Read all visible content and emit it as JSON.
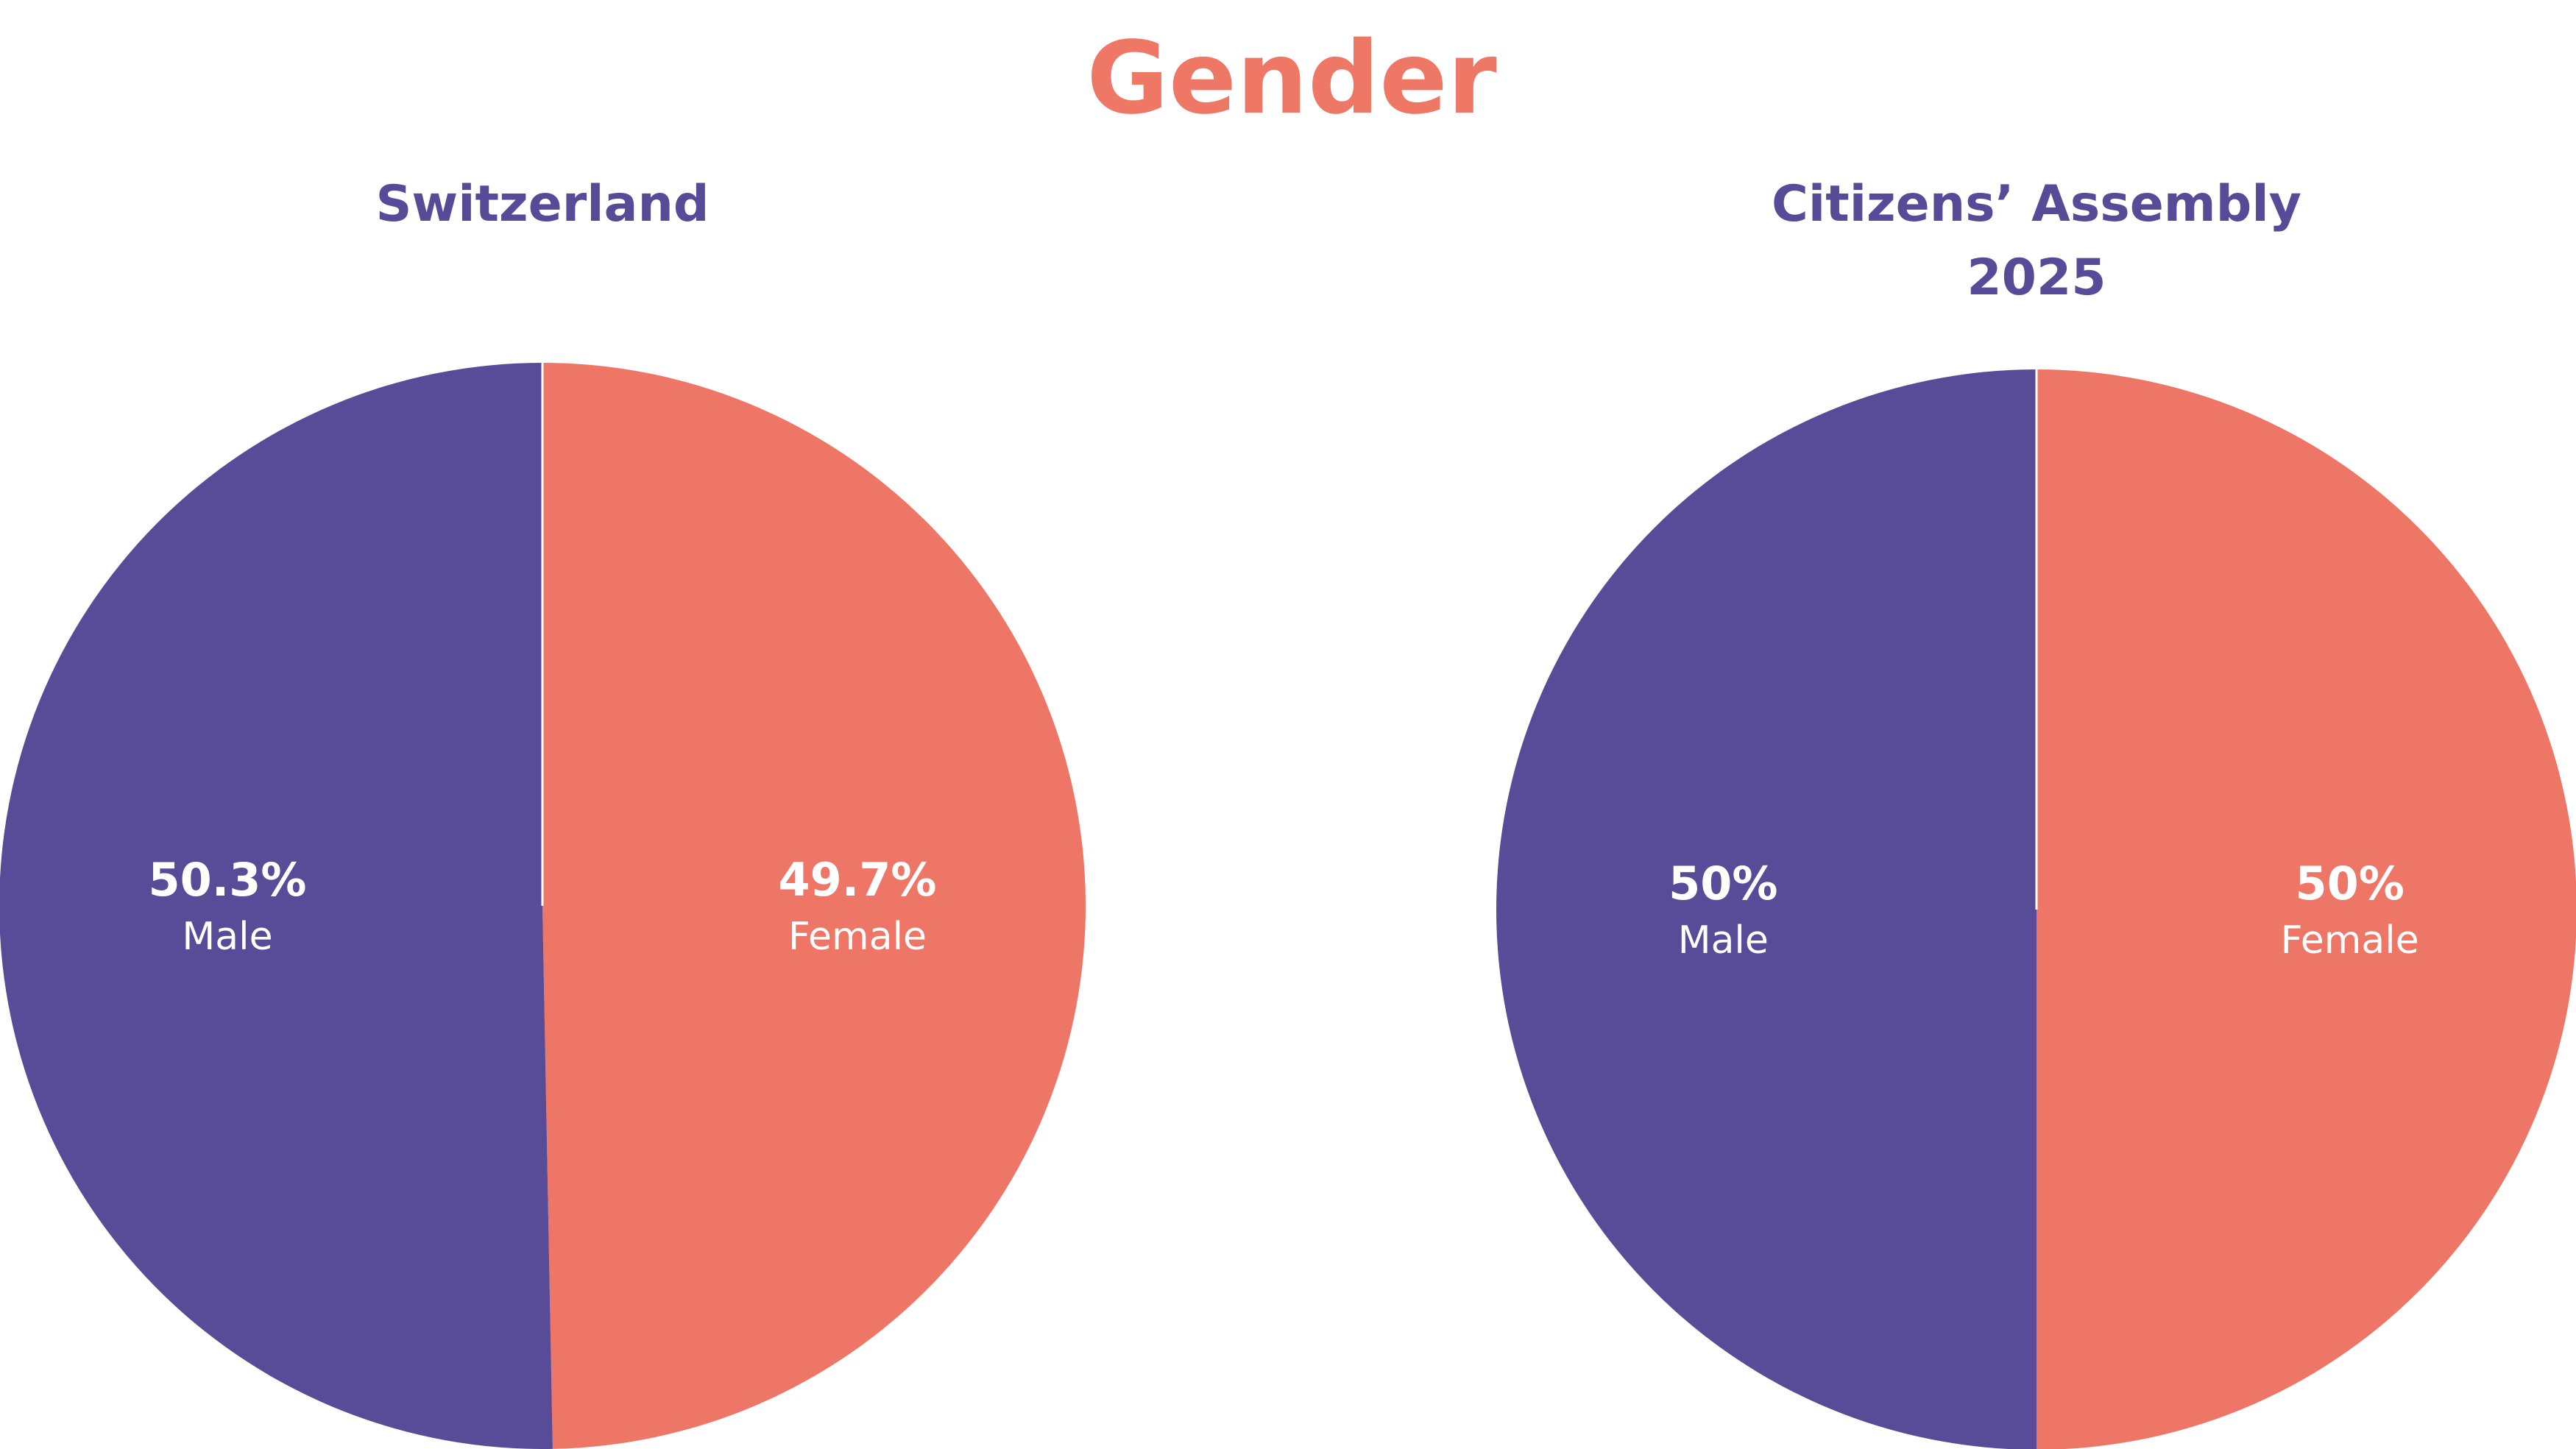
{
  "title": "Gender",
  "colors": {
    "title": "#EE7766",
    "subtitle": "#574B98",
    "male": "#584B98",
    "female": "#EE7666",
    "label_text": "#FFFFFF"
  },
  "chart_data": [
    {
      "type": "pie",
      "title_lines": [
        "Switzerland"
      ],
      "start_angle_deg": 0,
      "direction": "clockwise",
      "slices": [
        {
          "label": "Female",
          "value": 49.7,
          "value_label": "49.7%",
          "color": "#EE7666"
        },
        {
          "label": "Male",
          "value": 50.3,
          "value_label": "50.3%",
          "color": "#584B98"
        }
      ]
    },
    {
      "type": "pie",
      "title_lines": [
        "Citizens’ Assembly",
        "2025"
      ],
      "start_angle_deg": 0,
      "direction": "clockwise",
      "slices": [
        {
          "label": "Female",
          "value": 50,
          "value_label": "50%",
          "color": "#EE7666"
        },
        {
          "label": "Male",
          "value": 50,
          "value_label": "50%",
          "color": "#584B98"
        }
      ]
    }
  ]
}
